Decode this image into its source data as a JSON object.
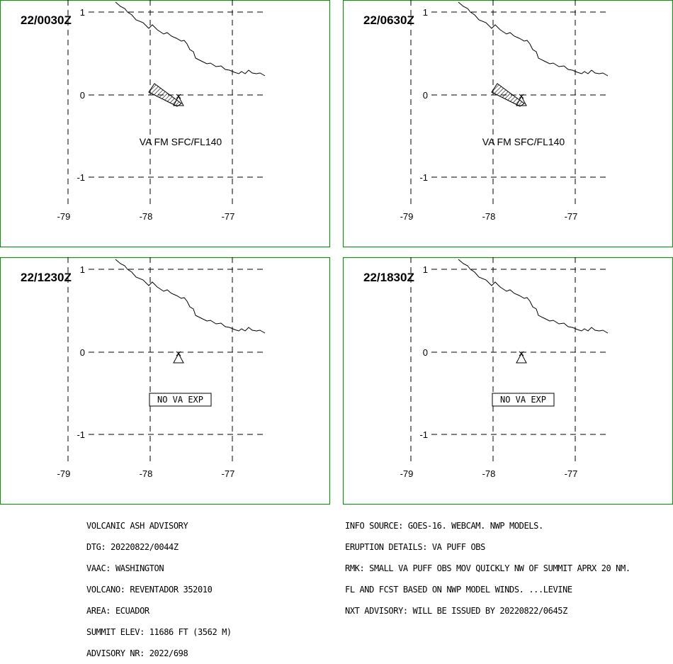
{
  "panels": [
    {
      "time": "22/0030Z",
      "label": "VA FM SFC/FL140",
      "has_plume": true,
      "no_va": false
    },
    {
      "time": "22/0630Z",
      "label": "VA FM SFC/FL140",
      "has_plume": true,
      "no_va": false
    },
    {
      "time": "22/1230Z",
      "label": "NO VA EXP",
      "has_plume": false,
      "no_va": true
    },
    {
      "time": "22/1830Z",
      "label": "NO VA EXP",
      "has_plume": false,
      "no_va": true
    }
  ],
  "axes": {
    "lat_labels": [
      "1",
      "0",
      "-1"
    ],
    "lon_labels": [
      "-79",
      "-78",
      "-77"
    ]
  },
  "icons": {
    "volcano": "volcano-summit-icon",
    "plume": "ash-plume-polygon"
  },
  "colors": {
    "panel_border": "#1a8a1a"
  },
  "footer_left": [
    "VOLCANIC ASH ADVISORY",
    "DTG: 20220822/0044Z",
    "VAAC: WASHINGTON",
    "VOLCANO: REVENTADOR 352010",
    "AREA: ECUADOR",
    "SUMMIT ELEV: 11686 FT (3562 M)",
    "ADVISORY NR: 2022/698"
  ],
  "footer_right": [
    "INFO SOURCE: GOES-16. WEBCAM. NWP MODELS.",
    "ERUPTION DETAILS: VA PUFF OBS",
    "RMK: SMALL VA PUFF OBS MOV QUICKLY NW OF SUMMIT APRX 20 NM.",
    "FL AND FCST BASED ON NWP MODEL WINDS. ...LEVINE",
    "NXT ADVISORY: WILL BE ISSUED BY 20220822/0645Z"
  ]
}
